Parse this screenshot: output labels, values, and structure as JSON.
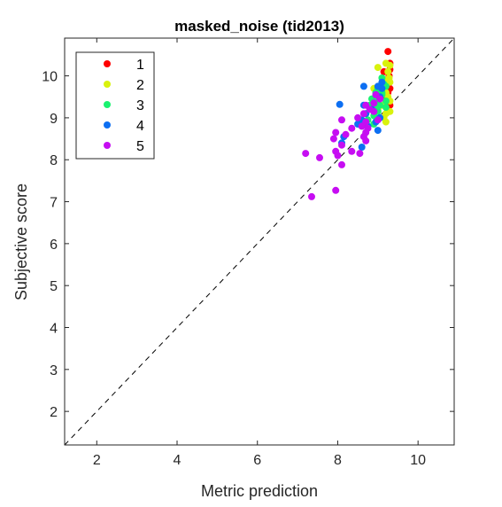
{
  "chart_data": {
    "type": "scatter",
    "title": "masked_noise (tid2013)",
    "xlabel": "Metric prediction",
    "ylabel": "Subjective score",
    "xlim": [
      1.2,
      10.9
    ],
    "ylim": [
      1.2,
      10.9
    ],
    "xticks": [
      2,
      4,
      6,
      8,
      10
    ],
    "yticks": [
      2,
      3,
      4,
      5,
      6,
      7,
      8,
      9,
      10
    ],
    "grid": false,
    "legend_position": "top-left",
    "reference_line": {
      "style": "dashed",
      "from": [
        1.2,
        1.2
      ],
      "to": [
        10.9,
        10.9
      ]
    },
    "series": [
      {
        "name": "1",
        "color": "#ff0000",
        "points": [
          [
            9.25,
            10.58
          ],
          [
            9.3,
            10.3
          ],
          [
            9.15,
            10.1
          ],
          [
            9.28,
            10.0
          ],
          [
            9.3,
            9.7
          ],
          [
            9.22,
            9.5
          ],
          [
            9.3,
            9.3
          ],
          [
            9.2,
            9.9
          ],
          [
            9.25,
            9.6
          ],
          [
            9.3,
            10.15
          ]
        ]
      },
      {
        "name": "2",
        "color": "#d9f20d",
        "points": [
          [
            9.0,
            10.2
          ],
          [
            9.2,
            10.3
          ],
          [
            9.3,
            10.25
          ],
          [
            9.25,
            10.1
          ],
          [
            9.2,
            9.9
          ],
          [
            9.3,
            9.85
          ],
          [
            9.1,
            9.8
          ],
          [
            9.2,
            9.6
          ],
          [
            9.25,
            9.5
          ],
          [
            9.3,
            9.4
          ],
          [
            9.1,
            9.3
          ],
          [
            9.0,
            9.2
          ],
          [
            9.2,
            9.1
          ],
          [
            9.3,
            9.15
          ],
          [
            9.15,
            9.0
          ],
          [
            9.2,
            8.9
          ],
          [
            8.9,
            9.7
          ],
          [
            9.28,
            9.95
          ]
        ]
      },
      {
        "name": "3",
        "color": "#19f270",
        "points": [
          [
            9.1,
            9.95
          ],
          [
            9.2,
            9.75
          ],
          [
            9.0,
            9.7
          ],
          [
            8.95,
            9.6
          ],
          [
            9.1,
            9.55
          ],
          [
            8.85,
            9.45
          ],
          [
            9.0,
            9.4
          ],
          [
            9.2,
            9.4
          ],
          [
            8.8,
            9.3
          ],
          [
            9.05,
            9.3
          ],
          [
            9.2,
            9.25
          ],
          [
            8.85,
            9.2
          ],
          [
            9.0,
            9.15
          ],
          [
            8.7,
            9.1
          ],
          [
            8.9,
            9.05
          ],
          [
            9.05,
            9.0
          ],
          [
            8.75,
            8.95
          ],
          [
            8.9,
            8.85
          ],
          [
            8.6,
            8.8
          ],
          [
            9.1,
            9.6
          ],
          [
            9.15,
            9.8
          ],
          [
            8.95,
            9.25
          ]
        ]
      },
      {
        "name": "4",
        "color": "#0d6ff2",
        "points": [
          [
            8.65,
            9.75
          ],
          [
            9.0,
            9.75
          ],
          [
            9.1,
            9.7
          ],
          [
            8.95,
            9.55
          ],
          [
            9.05,
            9.5
          ],
          [
            8.05,
            9.32
          ],
          [
            8.65,
            9.3
          ],
          [
            8.85,
            9.2
          ],
          [
            8.7,
            9.1
          ],
          [
            9.05,
            9.0
          ],
          [
            8.6,
            8.95
          ],
          [
            8.95,
            8.9
          ],
          [
            8.75,
            8.8
          ],
          [
            9.0,
            8.7
          ],
          [
            8.15,
            8.55
          ],
          [
            8.1,
            8.4
          ],
          [
            8.6,
            8.3
          ],
          [
            8.5,
            8.85
          ],
          [
            9.1,
            9.85
          ]
        ]
      },
      {
        "name": "5",
        "color": "#c60df2",
        "points": [
          [
            8.95,
            9.55
          ],
          [
            9.05,
            9.45
          ],
          [
            8.9,
            9.35
          ],
          [
            8.7,
            9.3
          ],
          [
            8.8,
            9.2
          ],
          [
            8.65,
            9.1
          ],
          [
            8.5,
            9.0
          ],
          [
            8.1,
            8.95
          ],
          [
            8.7,
            8.9
          ],
          [
            8.6,
            8.8
          ],
          [
            8.75,
            8.75
          ],
          [
            8.35,
            8.75
          ],
          [
            8.7,
            8.65
          ],
          [
            7.95,
            8.65
          ],
          [
            8.2,
            8.6
          ],
          [
            8.65,
            8.55
          ],
          [
            7.9,
            8.5
          ],
          [
            8.7,
            8.45
          ],
          [
            8.1,
            8.35
          ],
          [
            8.35,
            8.2
          ],
          [
            7.95,
            8.2
          ],
          [
            8.55,
            8.15
          ],
          [
            7.2,
            8.15
          ],
          [
            7.55,
            8.05
          ],
          [
            8.0,
            8.1
          ],
          [
            8.1,
            7.88
          ],
          [
            7.95,
            7.27
          ],
          [
            7.35,
            7.12
          ],
          [
            8.9,
            9.15
          ],
          [
            9.0,
            8.95
          ]
        ]
      }
    ]
  }
}
